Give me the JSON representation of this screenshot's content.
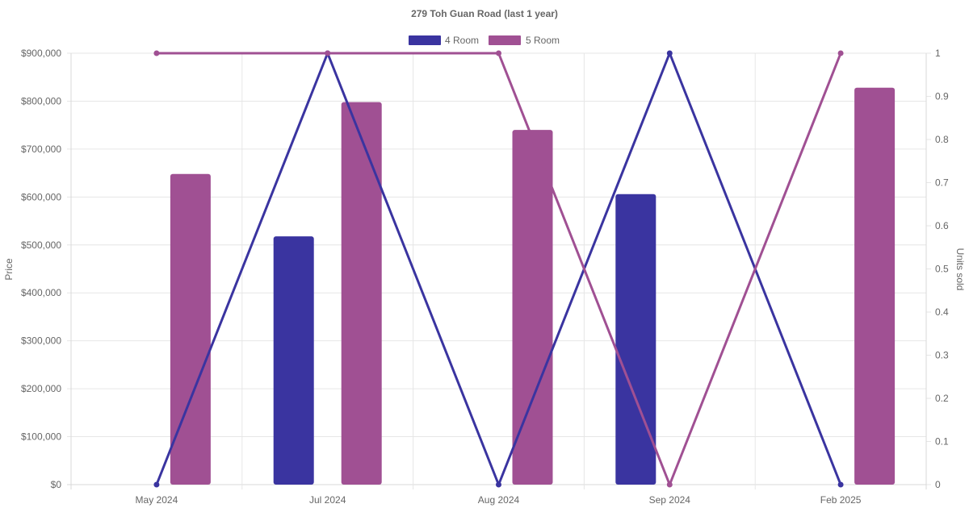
{
  "chart_data": {
    "type": "bar",
    "title": "279 Toh Guan Road (last 1 year)",
    "categories": [
      "May 2024",
      "Jul 2024",
      "Aug 2024",
      "Sep 2024",
      "Feb 2025"
    ],
    "left_axis": {
      "label": "Price",
      "range": [
        0,
        900000
      ],
      "ticks": [
        "$0",
        "$100,000",
        "$200,000",
        "$300,000",
        "$400,000",
        "$500,000",
        "$600,000",
        "$700,000",
        "$800,000",
        "$900,000"
      ]
    },
    "right_axis": {
      "label": "Units sold",
      "range": [
        0,
        1
      ],
      "ticks": [
        "0",
        "0.1",
        "0.2",
        "0.3",
        "0.4",
        "0.5",
        "0.6",
        "0.7",
        "0.8",
        "0.9",
        "1"
      ]
    },
    "grid": true,
    "legend_position": "top-center",
    "series": [
      {
        "name": "4 Room",
        "color": "#3a34a0",
        "price_values": [
          null,
          518000,
          null,
          606000,
          null
        ],
        "units_sold": [
          0,
          1,
          0,
          1,
          0
        ]
      },
      {
        "name": "5 Room",
        "color": "#a05093",
        "price_values": [
          648000,
          798000,
          740000,
          null,
          828000
        ],
        "units_sold": [
          1,
          1,
          1,
          0,
          1
        ]
      }
    ]
  }
}
